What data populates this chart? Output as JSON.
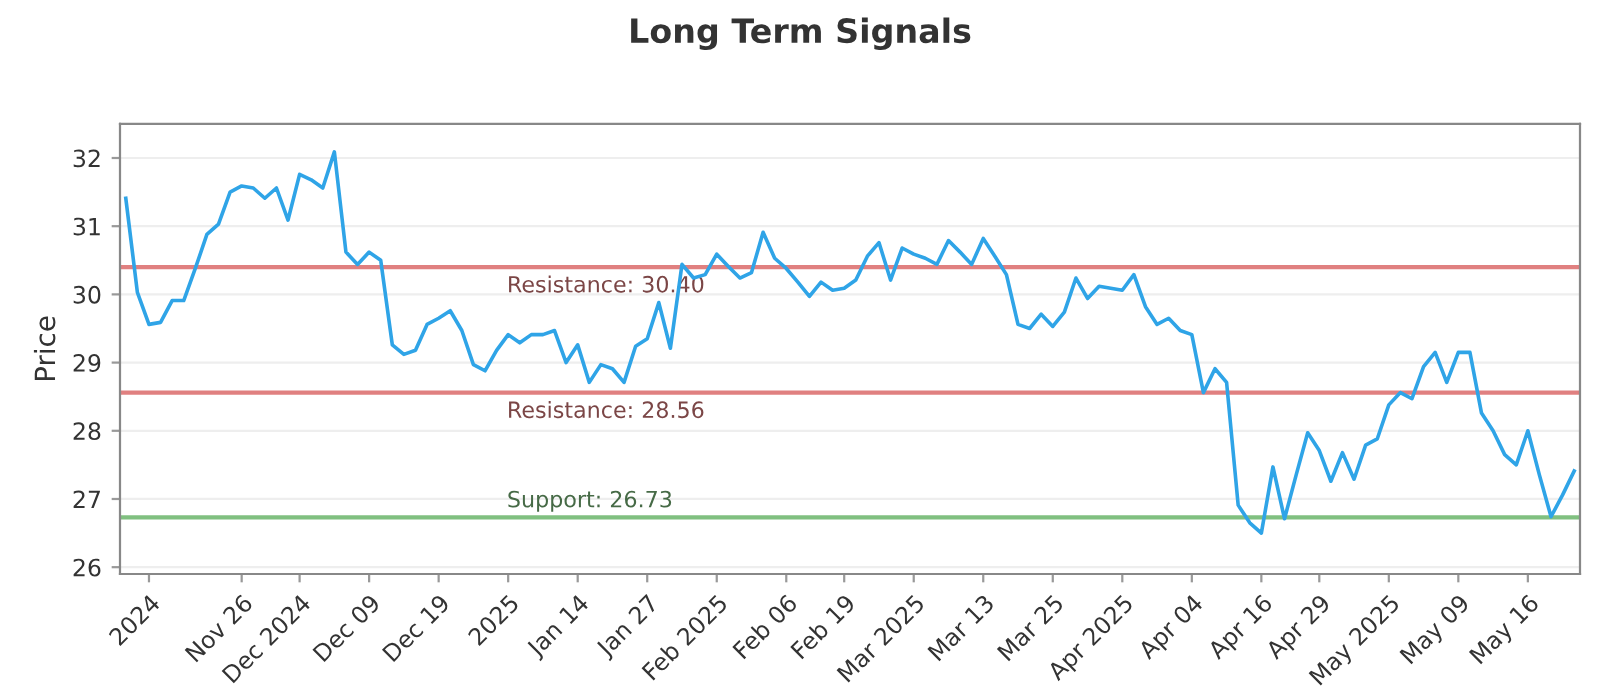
{
  "chart_data": {
    "type": "line",
    "title": "Long Term Signals",
    "ylabel": "Price",
    "categories": [
      null,
      null,
      "2024",
      null,
      null,
      null,
      null,
      null,
      null,
      null,
      "Nov 26",
      null,
      null,
      null,
      null,
      "Dec 2024",
      null,
      null,
      null,
      null,
      null,
      "Dec 09",
      null,
      null,
      null,
      null,
      null,
      "Dec 19",
      null,
      null,
      null,
      null,
      null,
      "2025",
      null,
      null,
      null,
      null,
      null,
      "Jan 14",
      null,
      null,
      null,
      null,
      null,
      "Jan 27",
      null,
      null,
      null,
      null,
      null,
      "Feb 2025",
      null,
      null,
      null,
      null,
      null,
      "Feb 06",
      null,
      null,
      null,
      null,
      "Feb 19",
      null,
      null,
      null,
      null,
      null,
      "Mar 2025",
      null,
      null,
      null,
      null,
      null,
      "Mar 13",
      null,
      null,
      null,
      null,
      null,
      "Mar 25",
      null,
      null,
      null,
      null,
      null,
      "Apr 2025",
      null,
      null,
      null,
      null,
      null,
      "Apr 04",
      null,
      null,
      null,
      null,
      null,
      "Apr 16",
      null,
      null,
      null,
      null,
      "Apr 29",
      null,
      null,
      null,
      null,
      null,
      "May 2025",
      null,
      null,
      null,
      null,
      null,
      "May 09",
      null,
      null,
      null,
      null,
      null,
      "May 16",
      null,
      null,
      null,
      null
    ],
    "series": [
      {
        "color": "#2fa4e7",
        "values": [
          31.41,
          30.03,
          29.56,
          29.59,
          29.91,
          29.91,
          30.38,
          30.88,
          31.03,
          31.5,
          31.59,
          31.56,
          31.41,
          31.56,
          31.09,
          31.76,
          31.68,
          31.56,
          32.09,
          30.62,
          30.44,
          30.62,
          30.5,
          29.26,
          29.12,
          29.18,
          29.56,
          29.65,
          29.76,
          29.47,
          28.97,
          28.88,
          29.18,
          29.41,
          29.29,
          29.41,
          29.41,
          29.47,
          29.0,
          29.26,
          28.71,
          28.97,
          28.91,
          28.71,
          29.24,
          29.35,
          29.88,
          29.21,
          30.44,
          30.24,
          30.29,
          30.59,
          30.41,
          30.24,
          30.32,
          30.91,
          30.53,
          30.38,
          30.18,
          29.97,
          30.18,
          30.06,
          30.09,
          30.21,
          30.56,
          30.76,
          30.21,
          30.68,
          30.59,
          30.53,
          30.44,
          30.79,
          30.62,
          30.44,
          30.82,
          30.56,
          30.29,
          29.56,
          29.5,
          29.71,
          29.53,
          29.74,
          30.24,
          29.94,
          30.12,
          30.09,
          30.06,
          30.29,
          29.82,
          29.56,
          29.65,
          29.47,
          29.41,
          28.56,
          28.91,
          28.71,
          26.91,
          26.65,
          26.5,
          27.47,
          26.71,
          27.35,
          27.97,
          27.71,
          27.26,
          27.68,
          27.29,
          27.79,
          27.88,
          28.38,
          28.56,
          28.47,
          28.94,
          29.15,
          28.71,
          29.15,
          29.15,
          28.26,
          28.0,
          27.65,
          27.5,
          28.0,
          27.35,
          26.74,
          27.06,
          27.41
        ]
      }
    ],
    "ylim": [
      25.9,
      32.5
    ],
    "yticks": [
      26,
      27,
      28,
      29,
      30,
      31,
      32
    ],
    "grid": "y",
    "marker": "none",
    "line_style": "solid",
    "ref_lines": [
      {
        "axis": "y",
        "value": 30.4,
        "label": "Resistance: 30.40",
        "color": "#e08080"
      },
      {
        "axis": "y",
        "value": 28.56,
        "label": "Resistance: 28.56",
        "color": "#e08080"
      },
      {
        "axis": "y",
        "value": 26.73,
        "label": "Support: 26.73",
        "color": "#80c080"
      }
    ]
  }
}
